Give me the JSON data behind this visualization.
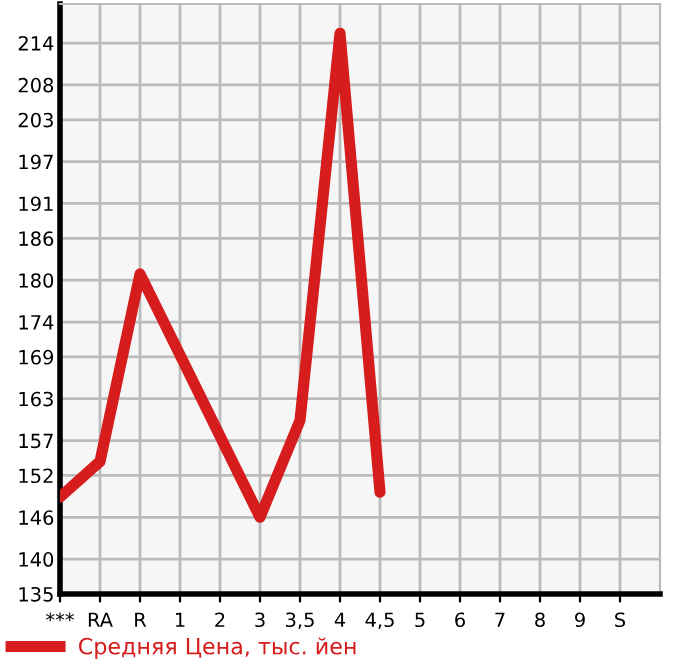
{
  "chart_data": {
    "type": "line",
    "categories": [
      "***",
      "RA",
      "R",
      "1",
      "2",
      "3",
      "3,5",
      "4",
      "4,5",
      "5",
      "6",
      "7",
      "8",
      "9",
      "S"
    ],
    "series": [
      {
        "name": "Средняя Цена, тыс. йен",
        "color": "#d61c1c",
        "values": [
          148.9,
          154.0,
          180.9,
          null,
          null,
          146.0,
          159.9,
          215.4,
          149.6,
          null,
          null,
          null,
          null,
          null,
          null
        ]
      }
    ],
    "ylim": [
      135,
      219.6
    ],
    "yticks": [
      135,
      140,
      146,
      152,
      157,
      163,
      169,
      174,
      180,
      186,
      191,
      197,
      203,
      208,
      214
    ],
    "grid": true,
    "legend": "bottom left",
    "marker": "none",
    "line_style": "solid"
  }
}
